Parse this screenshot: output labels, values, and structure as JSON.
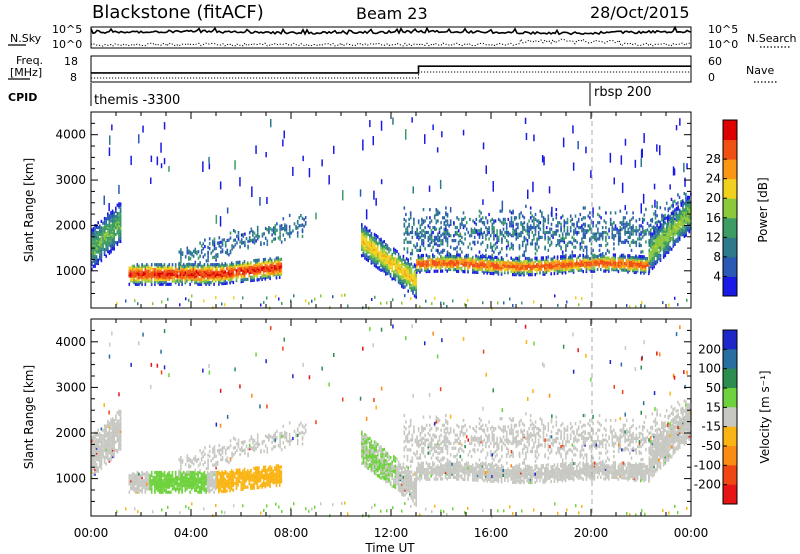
{
  "header": {
    "station": "Blackstone (fitACF)",
    "beam": "Beam 23",
    "date": "28/Oct/2015"
  },
  "panels": {
    "nsky_label": "N.Sky",
    "nsearch_label": "N.Search",
    "freq_label_1": "Freq.",
    "freq_label_2": "[MHz]",
    "nave_label": "Nave",
    "cpid_label": "CPID",
    "cpid_events": [
      {
        "time_h": 0,
        "label": "themis -3300"
      },
      {
        "time_h": 20,
        "label": "rbsp 200"
      }
    ]
  },
  "chart_data": [
    {
      "type": "line",
      "name": "noise-panel",
      "left_ticks": [
        "10^5",
        "10^0"
      ],
      "right_ticks": [
        "10^5",
        "10^0"
      ],
      "series": [
        {
          "name": "N.Sky"
        },
        {
          "name": "N.Search"
        }
      ]
    },
    {
      "type": "line",
      "name": "freq-nave-panel",
      "left_ticks": [
        "18",
        "8"
      ],
      "right_ticks": [
        "60",
        "0"
      ],
      "series": [
        {
          "name": "Freq.",
          "x": [
            0,
            13.1,
            13.1,
            24
          ],
          "values": [
            10.6,
            10.6,
            16.2,
            16.2
          ]
        },
        {
          "name": "Nave"
        }
      ]
    },
    {
      "type": "heatmap",
      "name": "power-panel",
      "ylabel": "Slant Range [km]",
      "yticks": [
        "1000",
        "2000",
        "3000",
        "4000"
      ],
      "colorbar": {
        "label": "Power [dB]",
        "ticks": [
          "4",
          "8",
          "12",
          "16",
          "20",
          "24",
          "28"
        ],
        "colors": [
          "#1a1ae6",
          "#2a5ab4",
          "#2e7a8c",
          "#3c9c64",
          "#8cc83c",
          "#f0d21e",
          "#fa9614",
          "#f05014",
          "#dc0000"
        ]
      }
    },
    {
      "type": "heatmap",
      "name": "velocity-panel",
      "ylabel": "Slant Range [km]",
      "yticks": [
        "1000",
        "2000",
        "3000",
        "4000"
      ],
      "colorbar": {
        "label": "Velocity [m s⁻¹]",
        "ticks": [
          "200",
          "100",
          "50",
          "15",
          "-15",
          "-50",
          "-100",
          "-200"
        ],
        "colors": [
          "#1e28c8",
          "#286ea0",
          "#2d8c50",
          "#6ed23c",
          "#c8c8c3",
          "#fab414",
          "#fa8c14",
          "#f04614",
          "#e61414"
        ]
      },
      "xticks": [
        "00:00",
        "04:00",
        "08:00",
        "12:00",
        "16:00",
        "20:00",
        "00:00"
      ],
      "xlabel": "Time UT"
    }
  ]
}
